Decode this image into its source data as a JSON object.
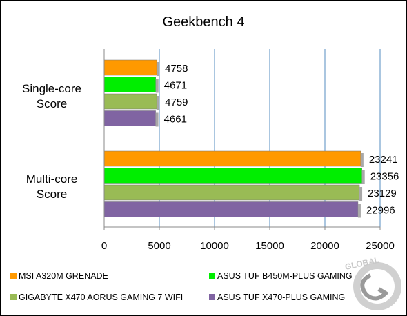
{
  "chart_data": {
    "type": "bar",
    "orientation": "horizontal",
    "title": "Geekbench 4",
    "categories": [
      "Single-core Score",
      "Multi-core Score"
    ],
    "category_lines": [
      [
        "Single-core",
        "Score"
      ],
      [
        "Multi-core",
        "Score"
      ]
    ],
    "xlim": [
      0,
      25000
    ],
    "xticks": [
      0,
      5000,
      10000,
      15000,
      20000,
      25000
    ],
    "grid": true,
    "legend_position": "bottom",
    "series": [
      {
        "name": "MSI A320M GRENADE",
        "color": "#ff9900",
        "values": [
          4758,
          23241
        ]
      },
      {
        "name": "ASUS TUF B450M-PLUS GAMING",
        "color": "#00ee00",
        "values": [
          4671,
          23356
        ]
      },
      {
        "name": "GIGABYTE X470 AORUS GAMING 7 WIFI",
        "color": "#99bb55",
        "values": [
          4759,
          23129
        ]
      },
      {
        "name": "ASUS TUF X470-PLUS GAMING",
        "color": "#8064a2",
        "values": [
          4661,
          22996
        ]
      }
    ]
  },
  "watermark": {
    "text": "GLOBAL",
    "icon": "geecks-logo-icon",
    "color": "#bbbbbb"
  }
}
